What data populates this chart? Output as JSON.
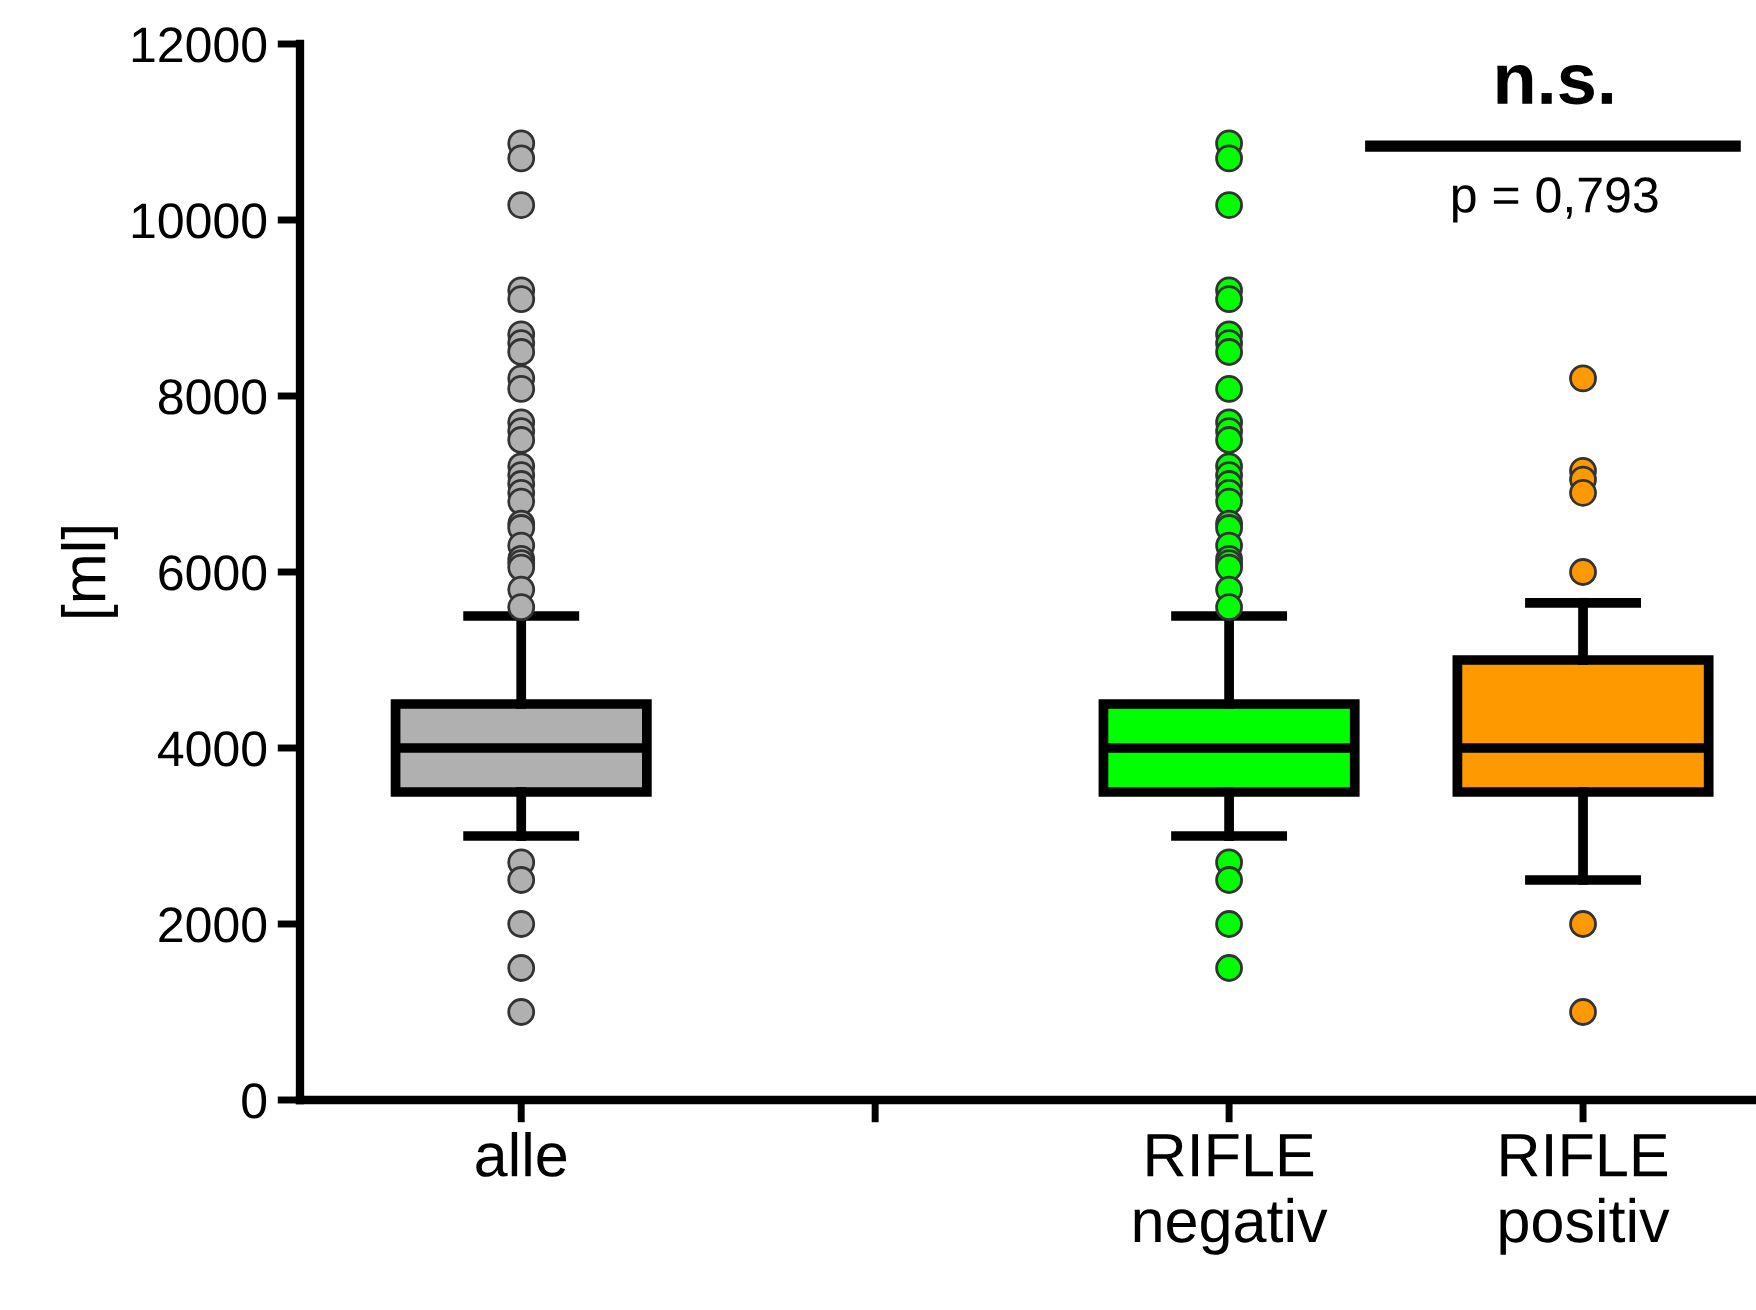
{
  "chart_data": {
    "type": "box",
    "ylabel": "[ml]",
    "categories": [
      "alle",
      null,
      "RIFLE\nnegativ",
      "RIFLE\npositiv"
    ],
    "colors": [
      "#b0b0b0",
      null,
      "#00ff00",
      "#ff9900"
    ],
    "boxes": [
      {
        "low": 3000,
        "q1": 3500,
        "median": 4000,
        "q3": 4500,
        "high": 5500,
        "outliers": [
          10870,
          10700,
          10170,
          9200,
          9100,
          8700,
          8600,
          8500,
          8200,
          8080,
          7700,
          7600,
          7500,
          7200,
          7100,
          7000,
          6900,
          6800,
          6550,
          6500,
          6300,
          6150,
          6100,
          6050,
          5800,
          5600,
          2700,
          2500,
          2000,
          1500,
          1000
        ]
      },
      null,
      {
        "low": 3000,
        "q1": 3500,
        "median": 4000,
        "q3": 4500,
        "high": 5500,
        "outliers": [
          10870,
          10700,
          10170,
          9200,
          9100,
          8700,
          8600,
          8500,
          8080,
          7700,
          7600,
          7500,
          7200,
          7100,
          7000,
          6900,
          6800,
          6550,
          6500,
          6300,
          6150,
          6100,
          6050,
          5800,
          5600,
          2700,
          2500,
          2000,
          1500
        ]
      },
      {
        "low": 2500,
        "q1": 3500,
        "median": 4000,
        "q3": 5000,
        "high": 5650,
        "outliers": [
          8200,
          7150,
          7050,
          6900,
          6000,
          2000,
          1000
        ]
      }
    ],
    "ylim": [
      0,
      12000
    ],
    "yticks": [
      0,
      2000,
      4000,
      6000,
      8000,
      10000,
      12000
    ],
    "annotations": [
      "n.s.",
      "p = 0,793"
    ],
    "grid": false,
    "legend": false
  }
}
